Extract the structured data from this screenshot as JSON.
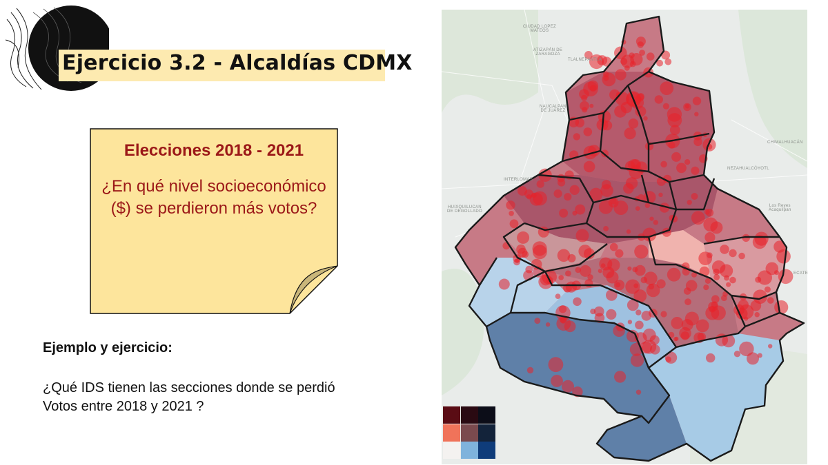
{
  "slide": {
    "title": "Ejercicio 3.2 - Alcaldías CDMX",
    "note": {
      "title": "Elecciones 2018 - 2021",
      "question": "¿En qué nivel socioeconómico ($) se perdieron más votos?"
    },
    "example_label": "Ejemplo y ejercicio:",
    "question": "¿Qué IDS tienen las secciones donde se perdió\n Votos entre 2018 y 2021 ?"
  },
  "map": {
    "place_labels": [
      {
        "id": "ciudad-lopez-mateos",
        "text": "CIUDAD LOPEZ\nMATEOS"
      },
      {
        "id": "atizapan",
        "text": "ATIZAPÁN DE\nZARAGOZA"
      },
      {
        "id": "tlalnepantla",
        "text": "TLALNEPANTLA"
      },
      {
        "id": "naucalpan",
        "text": "NAUCALPAN\nDE JUÁREZ"
      },
      {
        "id": "interlomas",
        "text": "INTERLOMAS"
      },
      {
        "id": "huixquilucan",
        "text": "HUIXQUILUCAN\nDE DEGOLLADO"
      },
      {
        "id": "chimalhuacan",
        "text": "CHIMALHUACÁN"
      },
      {
        "id": "nezahualcoyotl",
        "text": "NEZAHUALCÓYOTL"
      },
      {
        "id": "los-reyes",
        "text": "Los Reyes\nAcaquilpan"
      },
      {
        "id": "ecatepec",
        "text": "ECATE"
      }
    ],
    "bivariate_legend": [
      [
        "#5a0c14",
        "#2a0a12",
        "#0c0d18"
      ],
      [
        "#f0735a",
        "#7a4a4e",
        "#13233a"
      ],
      [
        "#f4f2f0",
        "#7fb3dc",
        "#0f3c7a"
      ]
    ],
    "colors": {
      "base_land": "#e9ecea",
      "base_green": "#d9e6d6",
      "red_area": "#c8616a",
      "dark_red": "#8e3d4b",
      "blue_light": "#9cc4e2",
      "blue_dark": "#5a7fa8",
      "dots": "#e8232a"
    }
  }
}
